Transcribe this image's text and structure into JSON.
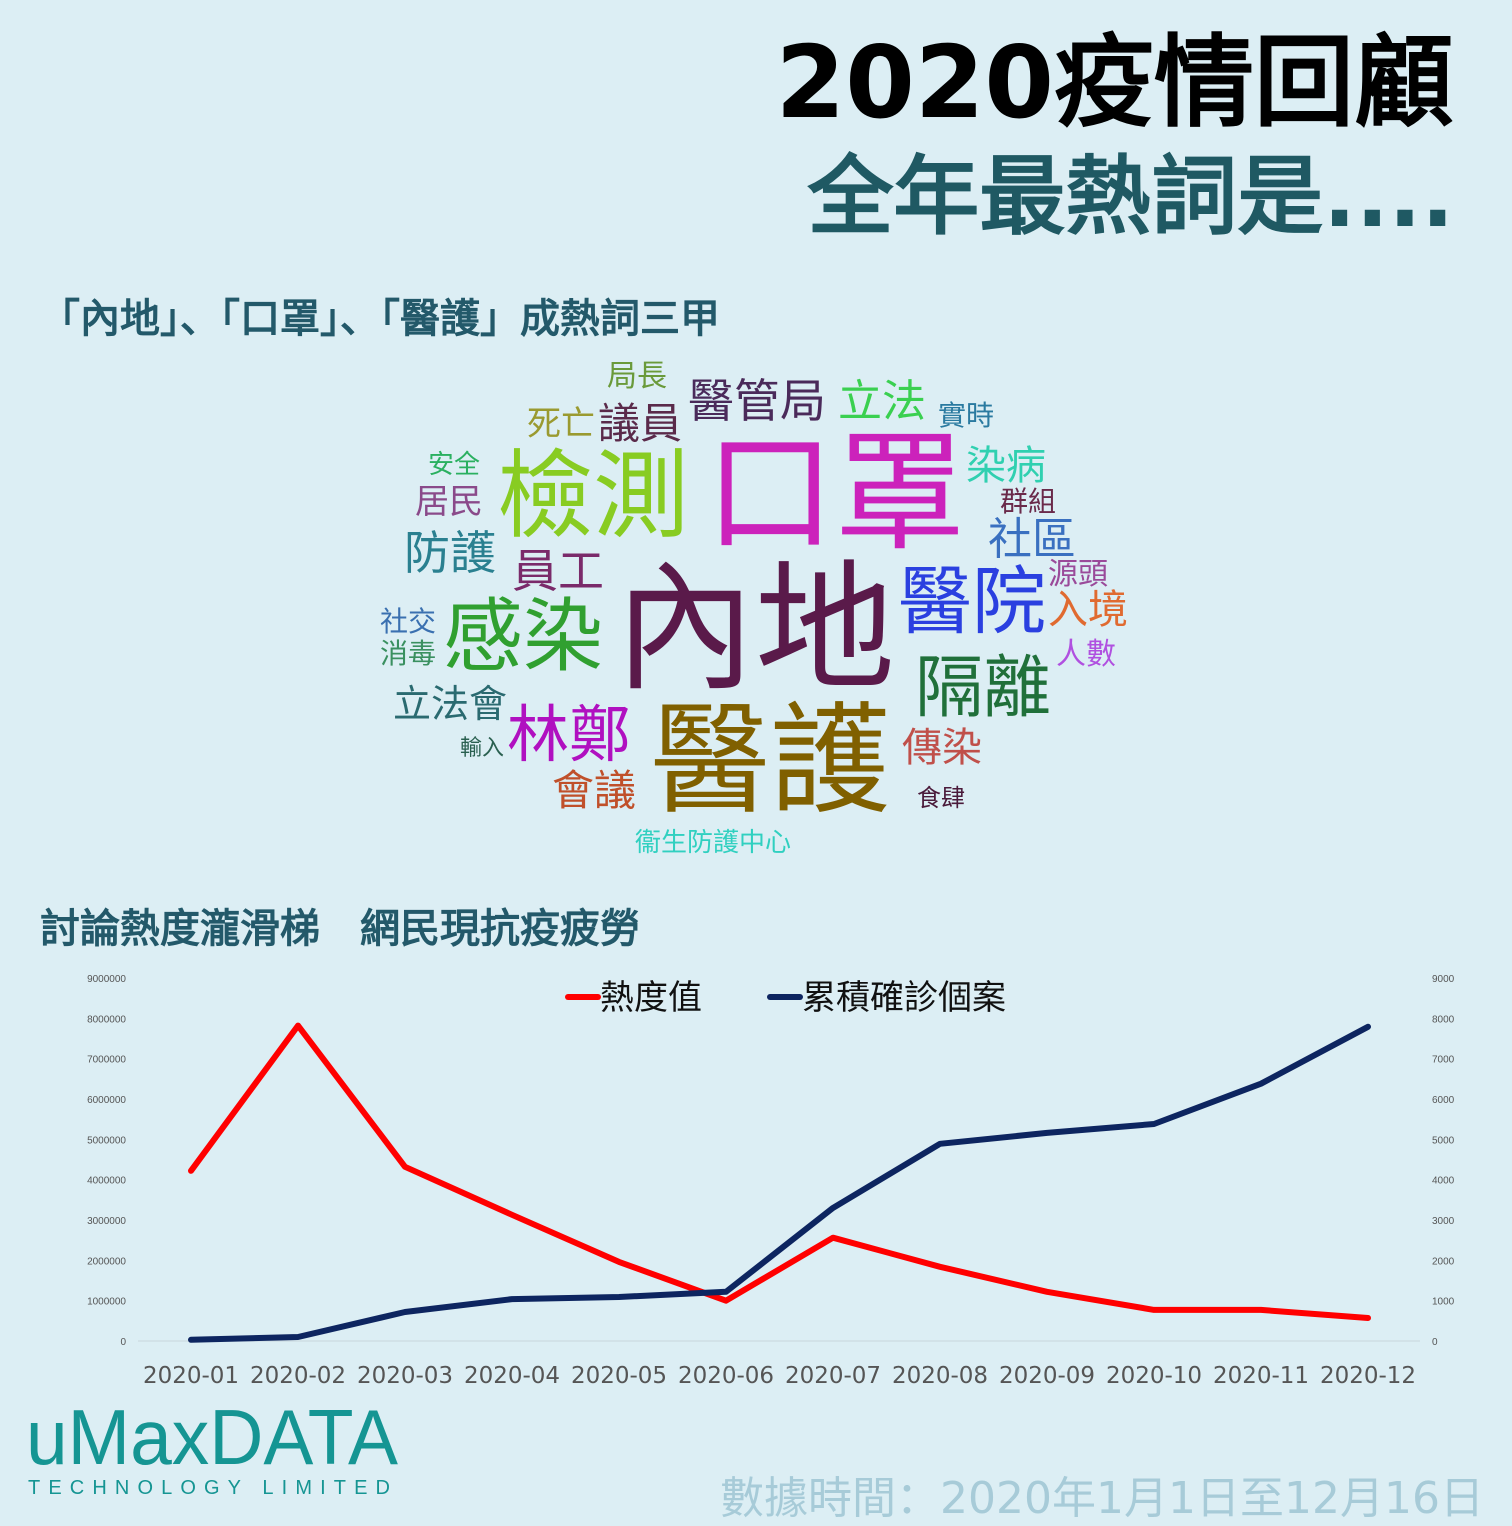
{
  "header": {
    "title": "2020疫情回顧",
    "subtitle": "全年最熱詞是...."
  },
  "wordcloud": {
    "heading": "「內地」、「口罩」、「醫護」成熱詞三甲",
    "words": [
      {
        "text": "局長",
        "color": "#6a9a3a"
      },
      {
        "text": "醫管局",
        "color": "#4a2a5a"
      },
      {
        "text": "立法",
        "color": "#3ad050"
      },
      {
        "text": "實時",
        "color": "#2a7aa0"
      },
      {
        "text": "死亡",
        "color": "#9a9a30"
      },
      {
        "text": "議員",
        "color": "#5a2a4a"
      },
      {
        "text": "安全",
        "color": "#2ab060"
      },
      {
        "text": "檢測",
        "color": "#88cc22"
      },
      {
        "text": "口罩",
        "color": "#cc22bb"
      },
      {
        "text": "群組",
        "color": "#6a2a4a"
      },
      {
        "text": "染病",
        "color": "#30d0b0"
      },
      {
        "text": "居民",
        "color": "#8a4a8a"
      },
      {
        "text": "社區",
        "color": "#3a70c0"
      },
      {
        "text": "防護",
        "color": "#2a8090"
      },
      {
        "text": "員工",
        "color": "#7a2a6a"
      },
      {
        "text": "內地",
        "color": "#5a1a4a"
      },
      {
        "text": "醫院",
        "color": "#2a40e0"
      },
      {
        "text": "源頭",
        "color": "#9a4a9a"
      },
      {
        "text": "入境",
        "color": "#e06a30"
      },
      {
        "text": "社交",
        "color": "#3a70b0"
      },
      {
        "text": "感染",
        "color": "#30a030"
      },
      {
        "text": "消毒",
        "color": "#3a9060"
      },
      {
        "text": "人數",
        "color": "#b050e0"
      },
      {
        "text": "隔離",
        "color": "#20703a"
      },
      {
        "text": "立法會",
        "color": "#2a6a70"
      },
      {
        "text": "林鄭",
        "color": "#b010c0"
      },
      {
        "text": "醫護",
        "color": "#806000"
      },
      {
        "text": "傳染",
        "color": "#c0504a"
      },
      {
        "text": "輸入",
        "color": "#2a6050"
      },
      {
        "text": "會議",
        "color": "#c0502a"
      },
      {
        "text": "食肆",
        "color": "#4a1a3a"
      },
      {
        "text": "衞生防護中心",
        "color": "#30d0c0"
      }
    ]
  },
  "chart_heading": "討論熱度瀧滑梯　網民現抗疫疲勞",
  "chart_data": {
    "type": "line",
    "title": "",
    "categories": [
      "2020-01",
      "2020-02",
      "2020-03",
      "2020-04",
      "2020-05",
      "2020-06",
      "2020-07",
      "2020-08",
      "2020-09",
      "2020-10",
      "2020-11",
      "2020-12"
    ],
    "series": [
      {
        "name": "熱度值",
        "axis": "left",
        "color": "#ff0000",
        "values": [
          4220000,
          7820000,
          4320000,
          3130000,
          1960000,
          1000000,
          2560000,
          1840000,
          1220000,
          770000,
          770000,
          570000
        ]
      },
      {
        "name": "累積確診個案",
        "axis": "right",
        "color": "#0d2560",
        "values": [
          30,
          100,
          720,
          1040,
          1090,
          1220,
          3300,
          4890,
          5160,
          5380,
          6380,
          7790
        ]
      }
    ],
    "left_axis": {
      "ylim": [
        0,
        9000000
      ],
      "ticks": [
        "0",
        "1000000",
        "2000000",
        "3000000",
        "4000000",
        "5000000",
        "6000000",
        "7000000",
        "8000000",
        "9000000"
      ]
    },
    "right_axis": {
      "ylim": [
        0,
        9000
      ],
      "ticks": [
        "0",
        "1000",
        "2000",
        "3000",
        "4000",
        "5000",
        "6000",
        "7000",
        "8000",
        "9000"
      ]
    },
    "legend_position": "top-center",
    "grid": false
  },
  "logo": {
    "name": "uMaxDATA",
    "tagline": "TECHNOLOGY LIMITED"
  },
  "footer": "數據時間：2020年1月1日至12月16日"
}
